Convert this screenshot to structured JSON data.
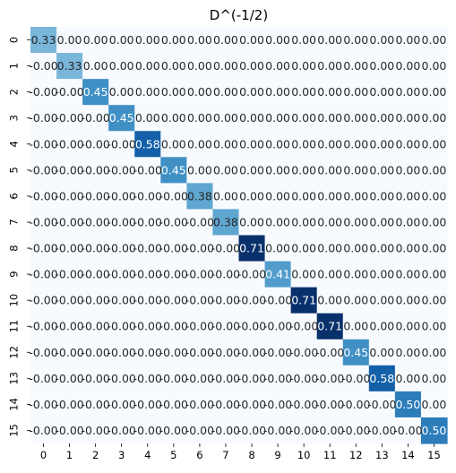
{
  "chart_data": {
    "type": "heatmap",
    "title": "D^(-1/2)",
    "x_categories": [
      "0",
      "1",
      "2",
      "3",
      "4",
      "5",
      "6",
      "7",
      "8",
      "9",
      "10",
      "11",
      "12",
      "13",
      "14",
      "15"
    ],
    "y_categories": [
      "0",
      "1",
      "2",
      "3",
      "4",
      "5",
      "6",
      "7",
      "8",
      "9",
      "10",
      "11",
      "12",
      "13",
      "14",
      "15"
    ],
    "diagonal_values": [
      0.33,
      0.33,
      0.45,
      0.45,
      0.58,
      0.45,
      0.38,
      0.38,
      0.71,
      0.41,
      0.71,
      0.71,
      0.45,
      0.58,
      0.5,
      0.5
    ],
    "off_diagonal_value": 0.0,
    "label_format": "2 decimals",
    "lower_triangle_label_prefix": "-",
    "colormap": "Blues",
    "vmin": 0.0,
    "vmax": 0.71,
    "colorbar": false,
    "grid": false
  }
}
